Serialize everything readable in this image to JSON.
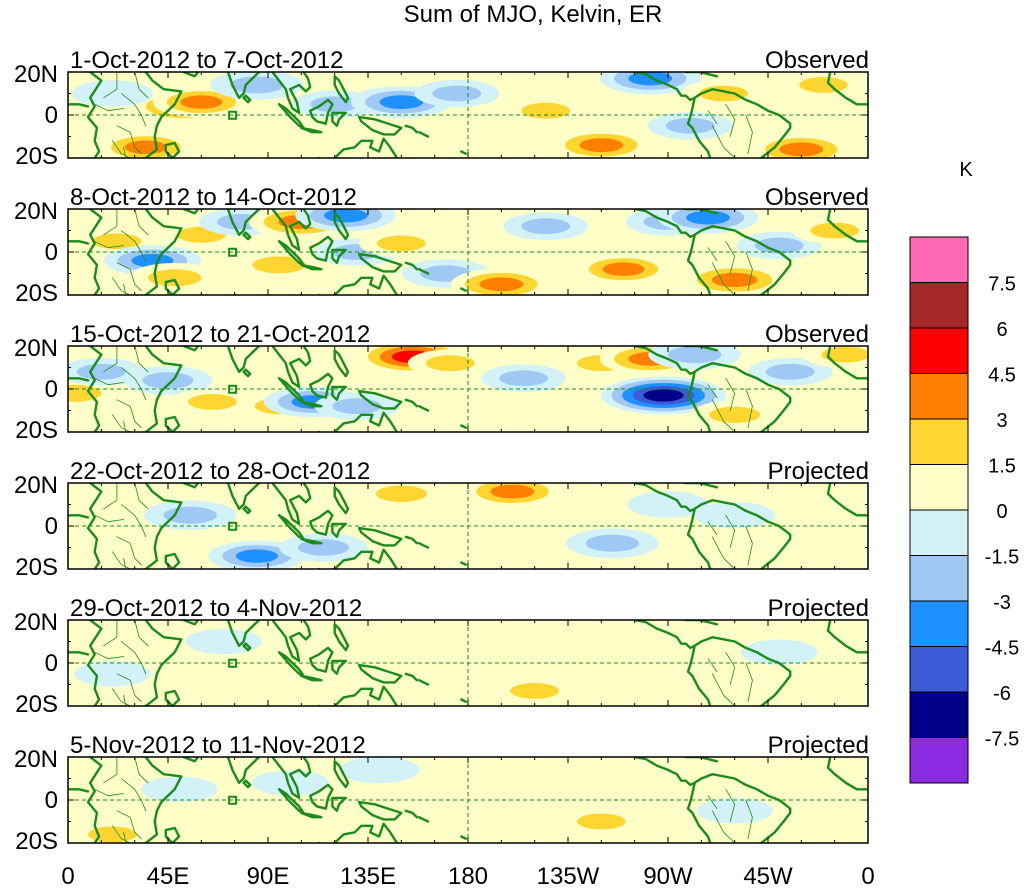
{
  "chart_data": {
    "type": "heatmap",
    "title": "Sum of MJO, Kelvin, ER",
    "units": "K",
    "x_axis": {
      "range_lon_east": [
        0,
        360
      ],
      "tick_lons": [
        0,
        45,
        90,
        135,
        180,
        225,
        270,
        315,
        360
      ],
      "tick_labels": [
        "0",
        "45E",
        "90E",
        "135E",
        "180",
        "135W",
        "90W",
        "45W",
        "0"
      ]
    },
    "y_axis": {
      "range_lat": [
        -20,
        20
      ],
      "tick_lats": [
        20,
        0,
        -20
      ],
      "tick_labels": [
        "20N",
        "0",
        "20S"
      ]
    },
    "colorbar": {
      "colors": [
        "#8a2be2",
        "#00008b",
        "#3d5ad8",
        "#1e90ff",
        "#9fc9f4",
        "#d2f2f7",
        "#ffffc8",
        "#ffd530",
        "#ff7f00",
        "#ff0000",
        "#a52828",
        "#ff69b4"
      ],
      "tick_labels": [
        "-7.5",
        "-6",
        "-4.5",
        "-3",
        "-1.5",
        "0",
        "1.5",
        "3",
        "4.5",
        "6",
        "7.5"
      ]
    },
    "panels": [
      {
        "date_range": "1-Oct-2012 to 7-Oct-2012",
        "status": "Observed",
        "anomalies": [
          {
            "lon": 52,
            "lat": 4,
            "value": 4.5
          },
          {
            "lon": 60,
            "lat": 6,
            "value": 3.5
          },
          {
            "lon": 35,
            "lat": -15,
            "value": 3.5
          },
          {
            "lon": 85,
            "lat": 14,
            "value": -3
          },
          {
            "lon": 120,
            "lat": 5,
            "value": -2
          },
          {
            "lon": 150,
            "lat": 6,
            "value": -4
          },
          {
            "lon": 175,
            "lat": 10,
            "value": -2
          },
          {
            "lon": 215,
            "lat": 2,
            "value": 2
          },
          {
            "lon": 240,
            "lat": -14,
            "value": 4
          },
          {
            "lon": 262,
            "lat": 17,
            "value": -4
          },
          {
            "lon": 280,
            "lat": -5,
            "value": -2
          },
          {
            "lon": 295,
            "lat": 10,
            "value": 2
          },
          {
            "lon": 330,
            "lat": -16,
            "value": 4
          },
          {
            "lon": 340,
            "lat": 14,
            "value": 2
          },
          {
            "lon": 20,
            "lat": 10,
            "value": -1.5
          },
          {
            "lon": 200,
            "lat": -10,
            "value": 1
          }
        ]
      },
      {
        "date_range": "8-Oct-2012 to 14-Oct-2012",
        "status": "Observed",
        "anomalies": [
          {
            "lon": 22,
            "lat": 5,
            "value": 2
          },
          {
            "lon": 38,
            "lat": -4,
            "value": -3.5
          },
          {
            "lon": 48,
            "lat": -12,
            "value": 3
          },
          {
            "lon": 60,
            "lat": 8,
            "value": 2
          },
          {
            "lon": 78,
            "lat": 14,
            "value": -2
          },
          {
            "lon": 95,
            "lat": -6,
            "value": 3
          },
          {
            "lon": 105,
            "lat": 14,
            "value": 4.5
          },
          {
            "lon": 125,
            "lat": 17,
            "value": -4
          },
          {
            "lon": 130,
            "lat": 0,
            "value": -2
          },
          {
            "lon": 150,
            "lat": 4,
            "value": 2
          },
          {
            "lon": 170,
            "lat": -10,
            "value": -2.5
          },
          {
            "lon": 195,
            "lat": -15,
            "value": 4
          },
          {
            "lon": 215,
            "lat": 12,
            "value": -2
          },
          {
            "lon": 250,
            "lat": -8,
            "value": 3.5
          },
          {
            "lon": 270,
            "lat": 14,
            "value": -2
          },
          {
            "lon": 288,
            "lat": 16,
            "value": -4
          },
          {
            "lon": 300,
            "lat": -13,
            "value": 4.5
          },
          {
            "lon": 320,
            "lat": 3,
            "value": -2
          },
          {
            "lon": 345,
            "lat": 10,
            "value": 2
          }
        ]
      },
      {
        "date_range": "15-Oct-2012 to 21-Oct-2012",
        "status": "Observed",
        "anomalies": [
          {
            "lon": 3,
            "lat": -2,
            "value": 3
          },
          {
            "lon": 15,
            "lat": 8,
            "value": -2
          },
          {
            "lon": 45,
            "lat": 4,
            "value": -2.5
          },
          {
            "lon": 65,
            "lat": -6,
            "value": 2
          },
          {
            "lon": 95,
            "lat": -8,
            "value": 2
          },
          {
            "lon": 110,
            "lat": -6,
            "value": -3.5
          },
          {
            "lon": 130,
            "lat": -8,
            "value": -2
          },
          {
            "lon": 155,
            "lat": 15,
            "value": 5.5
          },
          {
            "lon": 172,
            "lat": 12,
            "value": 2
          },
          {
            "lon": 205,
            "lat": 5,
            "value": -2
          },
          {
            "lon": 240,
            "lat": 12,
            "value": 2
          },
          {
            "lon": 268,
            "lat": -3,
            "value": -7
          },
          {
            "lon": 262,
            "lat": 14,
            "value": 4
          },
          {
            "lon": 282,
            "lat": 16,
            "value": -3
          },
          {
            "lon": 300,
            "lat": -12,
            "value": 2.5
          },
          {
            "lon": 325,
            "lat": 8,
            "value": -2
          },
          {
            "lon": 350,
            "lat": 16,
            "value": 2
          }
        ]
      },
      {
        "date_range": "22-Oct-2012 to 28-Oct-2012",
        "status": "Projected",
        "anomalies": [
          {
            "lon": 55,
            "lat": 5,
            "value": -3
          },
          {
            "lon": 65,
            "lat": -8,
            "value": 1.5
          },
          {
            "lon": 85,
            "lat": -14,
            "value": -3.5
          },
          {
            "lon": 115,
            "lat": -10,
            "value": -2.5
          },
          {
            "lon": 150,
            "lat": 15,
            "value": 2.5
          },
          {
            "lon": 190,
            "lat": -4,
            "value": 1.5
          },
          {
            "lon": 200,
            "lat": 16,
            "value": 4
          },
          {
            "lon": 245,
            "lat": -8,
            "value": -3
          },
          {
            "lon": 270,
            "lat": 10,
            "value": -1.5
          },
          {
            "lon": 280,
            "lat": -14,
            "value": 1.5
          },
          {
            "lon": 300,
            "lat": 5,
            "value": -1.5
          },
          {
            "lon": 20,
            "lat": -10,
            "value": 1
          }
        ]
      },
      {
        "date_range": "29-Oct-2012 to 4-Nov-2012",
        "status": "Projected",
        "anomalies": [
          {
            "lon": 20,
            "lat": -5,
            "value": -1
          },
          {
            "lon": 70,
            "lat": 10,
            "value": -1
          },
          {
            "lon": 120,
            "lat": -10,
            "value": 1
          },
          {
            "lon": 180,
            "lat": 10,
            "value": 1
          },
          {
            "lon": 210,
            "lat": -13,
            "value": 2
          },
          {
            "lon": 240,
            "lat": -8,
            "value": 1
          },
          {
            "lon": 320,
            "lat": 5,
            "value": -1
          }
        ]
      },
      {
        "date_range": "5-Nov-2012 to 11-Nov-2012",
        "status": "Projected",
        "anomalies": [
          {
            "lon": 20,
            "lat": -16,
            "value": 2
          },
          {
            "lon": 50,
            "lat": 5,
            "value": -1
          },
          {
            "lon": 100,
            "lat": 8,
            "value": -1
          },
          {
            "lon": 140,
            "lat": 14,
            "value": -1.5
          },
          {
            "lon": 200,
            "lat": 2,
            "value": 1.5
          },
          {
            "lon": 240,
            "lat": -10,
            "value": 2
          },
          {
            "lon": 275,
            "lat": 12,
            "value": 1
          },
          {
            "lon": 300,
            "lat": -5,
            "value": -1
          }
        ]
      }
    ]
  }
}
